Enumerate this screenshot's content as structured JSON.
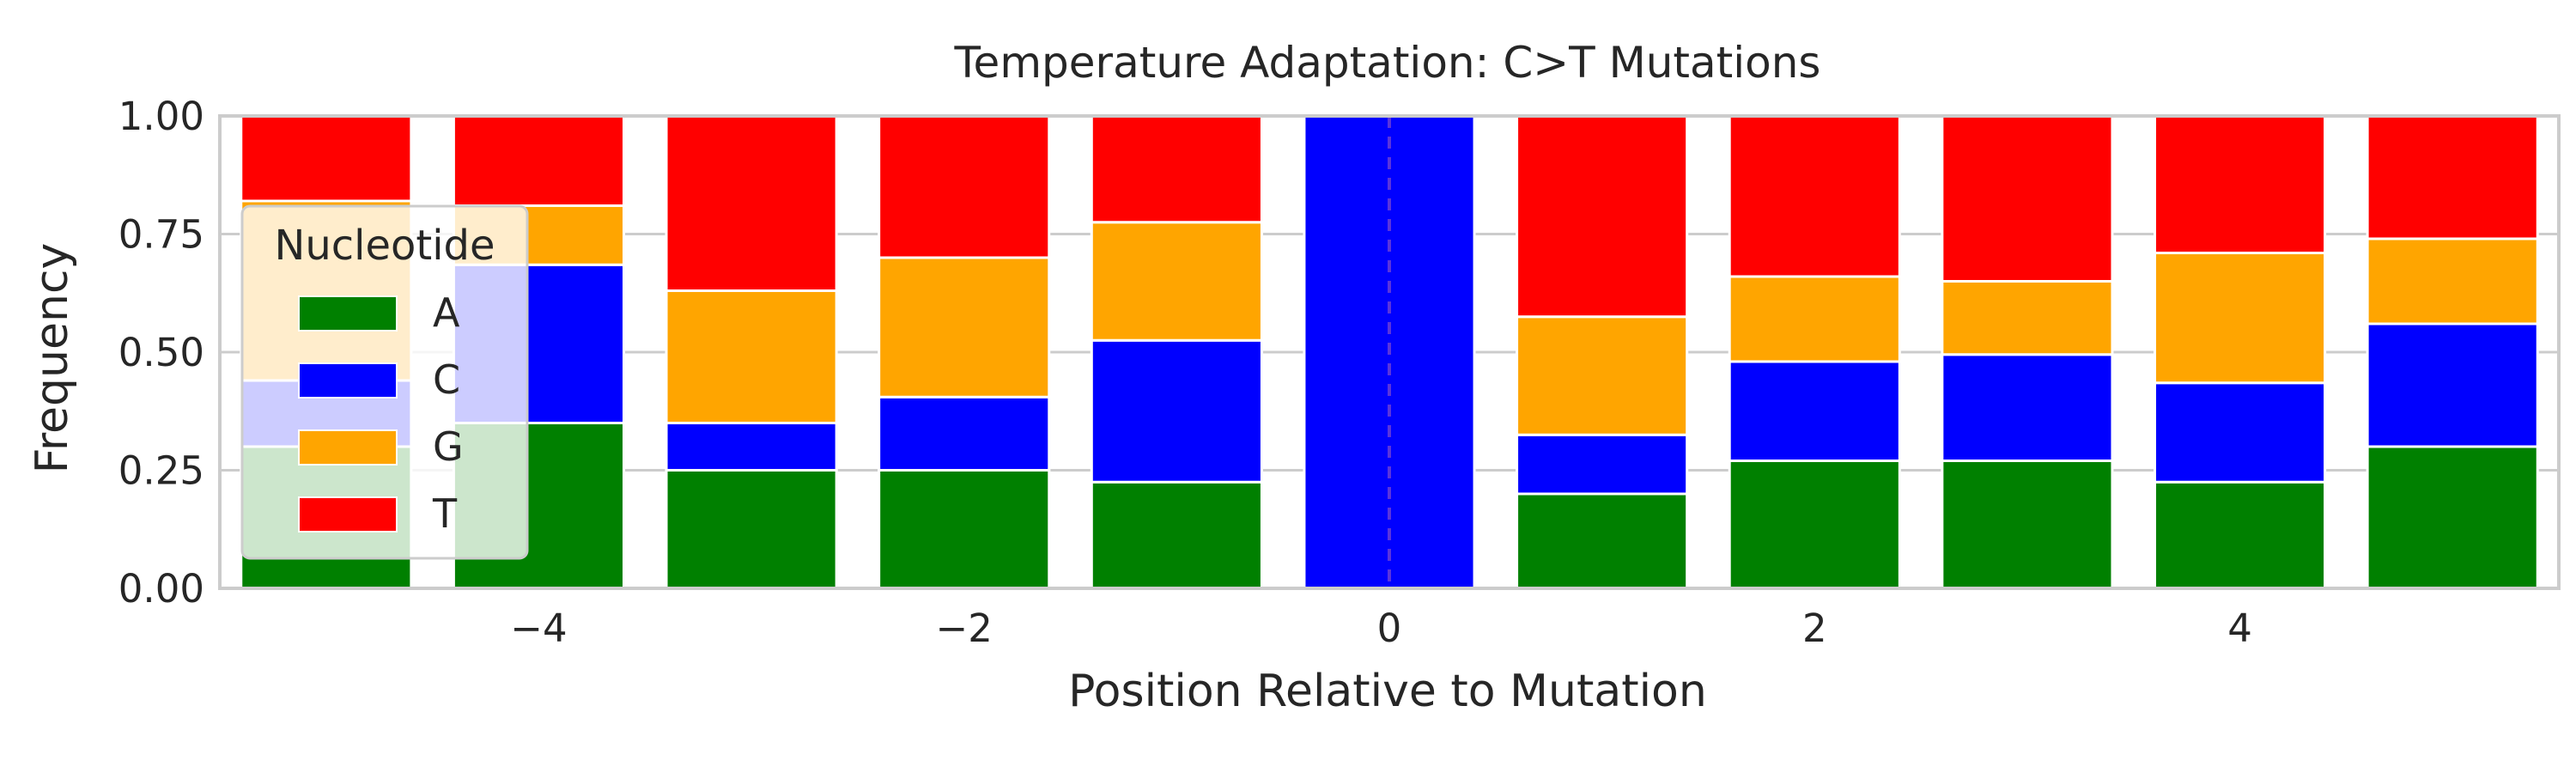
{
  "chart_data": {
    "type": "bar",
    "stacked": true,
    "title": "Temperature Adaptation: C>T Mutations",
    "xlabel": "Position Relative to Mutation",
    "ylabel": "Frequency",
    "x": [
      -5,
      -4,
      -3,
      -2,
      -1,
      0,
      1,
      2,
      3,
      4,
      5
    ],
    "xlim": [
      -5.5,
      5.5
    ],
    "ylim": [
      0,
      1
    ],
    "xticks": [
      -4,
      -2,
      0,
      2,
      4
    ],
    "xtick_labels": [
      "−4",
      "−2",
      "0",
      "2",
      "4"
    ],
    "yticks": [
      0,
      0.25,
      0.5,
      0.75,
      1.0
    ],
    "ytick_labels": [
      "0.00",
      "0.25",
      "0.50",
      "0.75",
      "1.00"
    ],
    "grid": true,
    "series": [
      {
        "name": "A",
        "color": "#008000",
        "values": [
          0.3,
          0.35,
          0.25,
          0.25,
          0.225,
          0.0,
          0.2,
          0.27,
          0.27,
          0.225,
          0.3
        ]
      },
      {
        "name": "C",
        "color": "#0000ff",
        "values": [
          0.14,
          0.335,
          0.1,
          0.155,
          0.3,
          1.0,
          0.125,
          0.21,
          0.225,
          0.21,
          0.26
        ]
      },
      {
        "name": "G",
        "color": "#ffa500",
        "values": [
          0.38,
          0.125,
          0.28,
          0.295,
          0.25,
          0.0,
          0.25,
          0.18,
          0.155,
          0.275,
          0.18
        ]
      },
      {
        "name": "T",
        "color": "#ff0000",
        "values": [
          0.18,
          0.19,
          0.37,
          0.3,
          0.225,
          0.0,
          0.425,
          0.34,
          0.35,
          0.29,
          0.26
        ]
      }
    ],
    "mutation_marker": {
      "x": 0,
      "color": "#6a3ed8",
      "style": "dashed"
    },
    "legend": {
      "title": "Nucleotide",
      "location": "center-left"
    }
  }
}
